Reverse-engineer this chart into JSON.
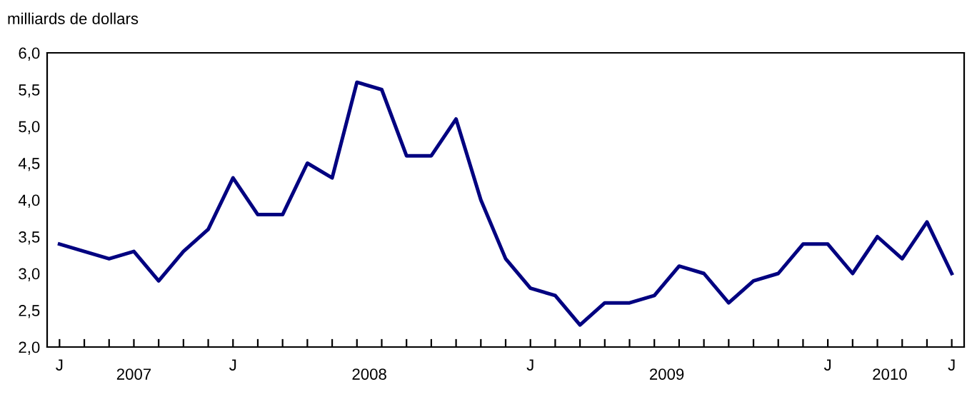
{
  "chart_data": {
    "type": "line",
    "ylabel": "milliards de dollars",
    "categories": [
      "J",
      null,
      null,
      null,
      null,
      null,
      null,
      "J",
      null,
      null,
      null,
      null,
      null,
      null,
      null,
      null,
      null,
      null,
      null,
      "J",
      null,
      null,
      null,
      null,
      null,
      null,
      null,
      null,
      null,
      null,
      null,
      "J",
      null,
      null,
      null,
      null,
      "J"
    ],
    "annotations": [
      "2007",
      "2008",
      "2009",
      "2010"
    ],
    "series": [
      {
        "color": "#000080",
        "values": [
          3.4,
          3.3,
          3.2,
          3.3,
          2.9,
          3.3,
          3.6,
          4.3,
          3.8,
          3.8,
          4.5,
          4.3,
          5.6,
          5.5,
          4.6,
          4.6,
          5.1,
          4.0,
          3.2,
          2.8,
          2.7,
          2.3,
          2.6,
          2.6,
          2.7,
          3.1,
          3.0,
          2.6,
          2.9,
          3.0,
          3.4,
          3.4,
          3.0,
          3.5,
          3.2,
          3.7,
          3.0
        ]
      }
    ],
    "ylim": [
      2.0,
      6.0
    ],
    "yticks": [
      {
        "value": 2.0,
        "label": "2,0"
      },
      {
        "value": 2.5,
        "label": "2,5"
      },
      {
        "value": 3.0,
        "label": "3,0"
      },
      {
        "value": 3.5,
        "label": "3,5"
      },
      {
        "value": 4.0,
        "label": "4,0"
      },
      {
        "value": 4.5,
        "label": "4,5"
      },
      {
        "value": 5.0,
        "label": "5,0"
      },
      {
        "value": 5.5,
        "label": "5,5"
      },
      {
        "value": 6.0,
        "label": "6,0"
      }
    ],
    "grid": false,
    "marker": "none",
    "line_style": "solid"
  }
}
